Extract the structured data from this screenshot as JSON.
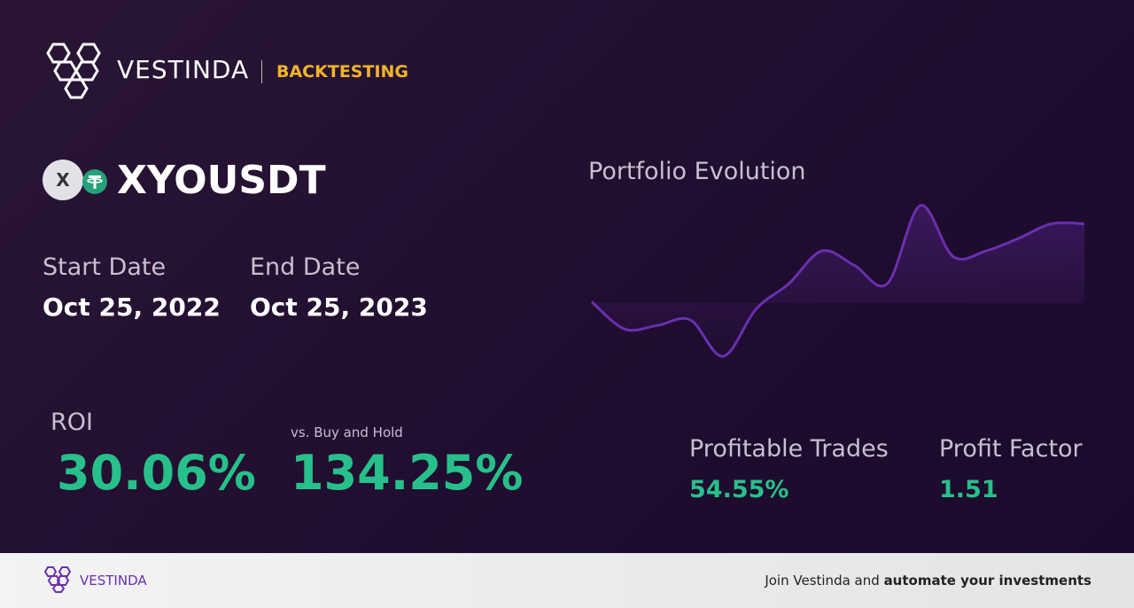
{
  "header": {
    "brand": "VESTINDA",
    "section": "BACKTESTING"
  },
  "asset": {
    "icon": "X",
    "symbol": "XYOUSDT"
  },
  "start": {
    "label": "Start Date",
    "value": "Oct 25, 2022"
  },
  "end": {
    "label": "End Date",
    "value": "Oct 25, 2023"
  },
  "roi": {
    "label": "ROI",
    "value": "30.06%"
  },
  "buy_hold": {
    "label": "vs. Buy and Hold",
    "value": "134.25%"
  },
  "profitable_trades": {
    "label": "Profitable Trades",
    "value": "54.55%"
  },
  "profit_factor": {
    "label": "Profit Factor",
    "value": "1.51"
  },
  "chart_data": {
    "type": "line",
    "title": "Portfolio Evolution",
    "color": "#6a2fb0",
    "values": [
      100,
      85,
      87,
      90,
      70,
      96,
      110,
      128,
      120,
      110,
      153,
      125,
      128,
      135,
      143,
      143
    ]
  },
  "footer": {
    "brand": "VESTINDA",
    "text": "Join Vestinda and",
    "emphasis": "automate your investments"
  }
}
